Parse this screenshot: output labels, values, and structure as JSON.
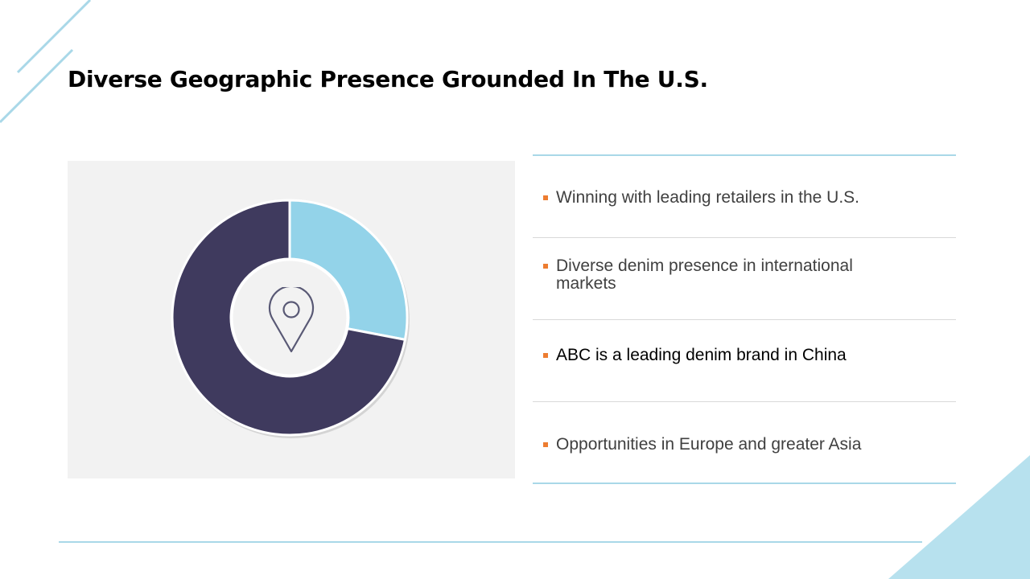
{
  "slide": {
    "title": "Diverse Geographic Presence Grounded In The U.S."
  },
  "colors": {
    "accent_line": "#a9d8e8",
    "donut_dark": "#3f3a5e",
    "donut_light": "#93d3e9",
    "bullet_marker": "#ed7d31",
    "panel_bg": "#f2f2f2"
  },
  "donut": {
    "segments": [
      {
        "value": 28,
        "color": "#93d3e9"
      },
      {
        "value": 72,
        "color": "#3f3a5e"
      }
    ],
    "center_icon": "location-pin-icon"
  },
  "bullets": [
    {
      "text": "Winning with leading retailers in the U.S."
    },
    {
      "text": "Diverse denim presence in international markets"
    },
    {
      "text": "ABC is a leading denim brand in China"
    },
    {
      "text": "Opportunities in Europe and greater Asia"
    }
  ]
}
